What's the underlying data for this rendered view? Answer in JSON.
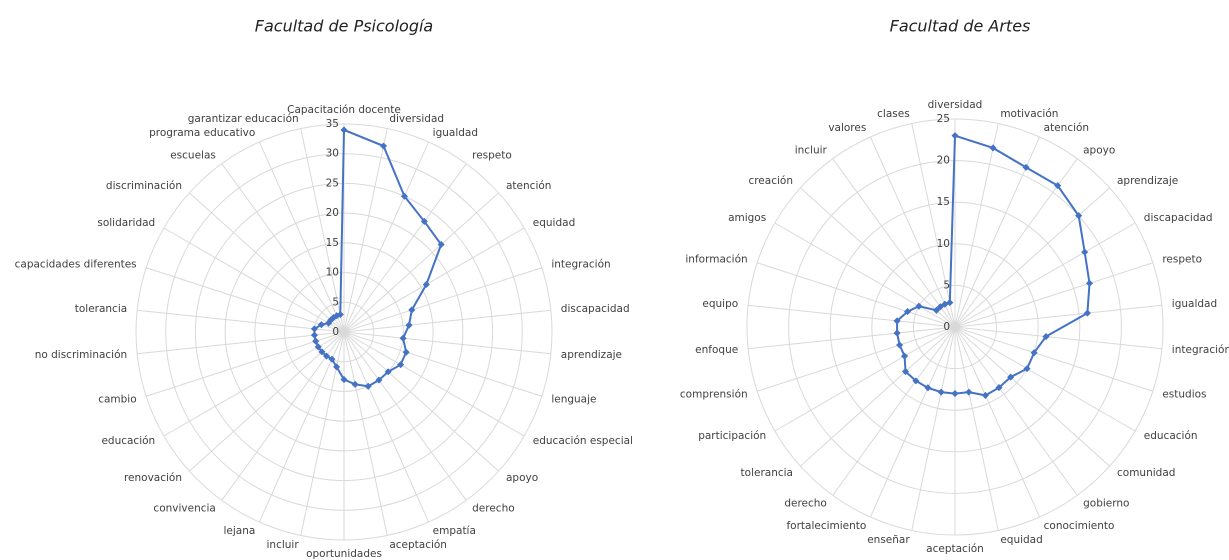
{
  "chart_data": [
    {
      "type": "radar",
      "title": "Facultad de Psicología",
      "categories": [
        "Capacitación docente",
        "diversidad",
        "igualdad",
        "respeto",
        "atención",
        "equidad",
        "integración",
        "discapacidad",
        "aprendizaje",
        "lenguaje",
        "educación especial",
        "apoyo",
        "derecho",
        "empatía",
        "aceptación",
        "oportunidades",
        "incluir",
        "lejana",
        "convivencia",
        "renovación",
        "educación",
        "cambio",
        "no discriminación",
        "tolerancia",
        "capacidades diferentes",
        "solidaridad",
        "discriminación",
        "escuelas",
        "programa educativo",
        "garantizar educación"
      ],
      "values": [
        34,
        32,
        25,
        23,
        22,
        16,
        12,
        11,
        10,
        11,
        11,
        10,
        10,
        10,
        9,
        8,
        6,
        5,
        5,
        5,
        5,
        5,
        5,
        5,
        4,
        3,
        3,
        3,
        3,
        3
      ],
      "color": "#4472c4",
      "ylim": [
        0,
        35
      ],
      "yticks": [
        0,
        5,
        10,
        15,
        20,
        25,
        30,
        35
      ],
      "grid": true
    },
    {
      "type": "radar",
      "title": "Facultad de Artes",
      "categories": [
        "diversidad",
        "motivación",
        "atención",
        "apoyo",
        "aprendizaje",
        "discapacidad",
        "respeto",
        "igualdad",
        "integración",
        "estudios",
        "educación",
        "comunidad",
        "gobierno",
        "conocimiento",
        "equidad",
        "aceptación",
        "enseñar",
        "fortalecimiento",
        "derecho",
        "tolerancia",
        "participación",
        "comprensión",
        "enfoque",
        "equipo",
        "información",
        "amigos",
        "creación",
        "incluir",
        "valores",
        "clases"
      ],
      "values": [
        23,
        22,
        21,
        21,
        20,
        18,
        17,
        16,
        11,
        10,
        10,
        9,
        9,
        9,
        8,
        8,
        8,
        8,
        8,
        8,
        7,
        7,
        7,
        7,
        6,
        5,
        3,
        3,
        3,
        3
      ],
      "color": "#4472c4",
      "ylim": [
        0,
        25
      ],
      "yticks": [
        0,
        5,
        10,
        15,
        20,
        25
      ],
      "grid": true
    }
  ]
}
